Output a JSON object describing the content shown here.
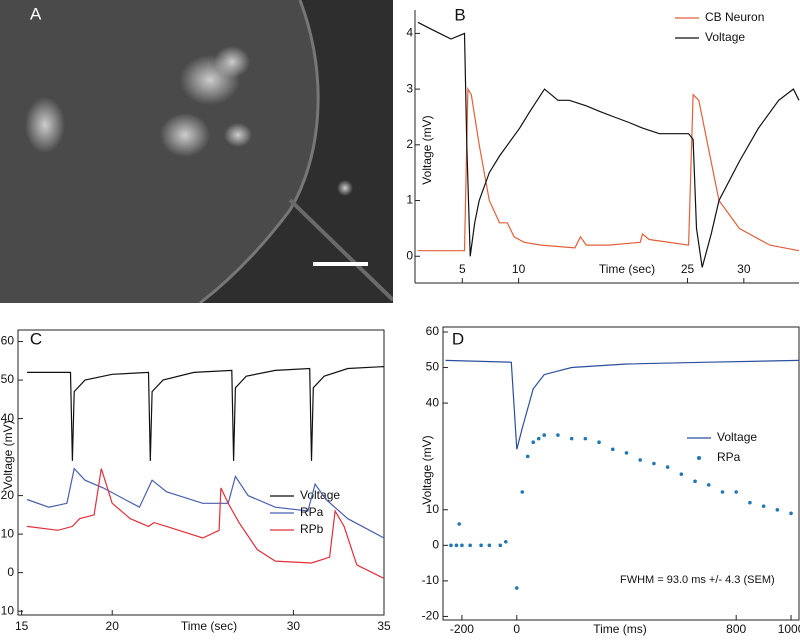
{
  "panel_a": {
    "label": "A"
  },
  "chart_data": [
    {
      "type": "line",
      "label": "B",
      "xlabel": "Time (sec)",
      "ylabel": "Voltage (mV)",
      "xlim": [
        0.8,
        34.9
      ],
      "ylim": [
        -0.48,
        4.42
      ],
      "xticks": [
        5,
        10,
        25,
        30
      ],
      "yticks": [
        0,
        1,
        2,
        3,
        4
      ],
      "frame": false,
      "series": [
        {
          "name": "CB Neuron",
          "color": "#e0603a",
          "style": "line",
          "x": [
            1.06,
            5.2,
            5.5,
            5.8,
            6.5,
            7.4,
            8.3,
            9.0,
            9.6,
            10.5,
            12.0,
            15.0,
            15.5,
            16.0,
            18.0,
            20.8,
            21.0,
            21.6,
            25.1,
            25.5,
            26.0,
            27.0,
            27.8,
            29.6,
            32.3,
            34.9
          ],
          "values": [
            0.1,
            0.1,
            3.0,
            2.9,
            2.0,
            1.0,
            0.6,
            0.6,
            0.35,
            0.25,
            0.2,
            0.15,
            0.35,
            0.2,
            0.2,
            0.25,
            0.4,
            0.3,
            0.2,
            2.9,
            2.8,
            1.8,
            1.0,
            0.5,
            0.2,
            0.1
          ]
        },
        {
          "name": "Voltage",
          "color": "#111111",
          "style": "line",
          "x": [
            1.06,
            2.0,
            3.0,
            4.0,
            5.2,
            5.4,
            5.7,
            6.1,
            6.5,
            7.4,
            8.3,
            10.1,
            11.0,
            12.3,
            13.5,
            14.5,
            16.0,
            17.2,
            18.5,
            19.8,
            21.0,
            22.5,
            23.8,
            25.1,
            25.5,
            25.8,
            26.3,
            27.1,
            27.8,
            29.6,
            31.3,
            33.1,
            34.4,
            34.9
          ],
          "values": [
            4.2,
            4.1,
            4.0,
            3.9,
            4.0,
            2.0,
            0.0,
            0.6,
            1.0,
            1.5,
            1.8,
            2.3,
            2.6,
            3.0,
            2.8,
            2.8,
            2.7,
            2.6,
            2.5,
            2.4,
            2.3,
            2.2,
            2.2,
            2.2,
            2.1,
            0.5,
            -0.2,
            0.4,
            1.0,
            1.7,
            2.3,
            2.8,
            3.0,
            2.8
          ]
        }
      ]
    },
    {
      "type": "line",
      "label": "C",
      "xlabel": "Time (sec)",
      "ylabel": "Voltage (mV)",
      "xlim": [
        14.8,
        35
      ],
      "ylim": [
        -11,
        63
      ],
      "xticks": [
        15,
        20,
        30,
        35
      ],
      "yticks": [
        -10,
        0,
        10,
        20,
        40,
        50,
        60
      ],
      "frame": true,
      "series": [
        {
          "name": "Voltage",
          "color": "#111111",
          "style": "line",
          "x": [
            15.3,
            17.7,
            17.8,
            17.9,
            18.5,
            20.0,
            22.0,
            22.1,
            22.2,
            22.8,
            24.5,
            26.6,
            26.7,
            26.8,
            27.4,
            29.0,
            30.9,
            31.0,
            31.1,
            31.7,
            33.0,
            35.0
          ],
          "values": [
            52,
            52,
            29,
            47,
            50,
            51.5,
            52,
            29,
            47,
            50,
            52,
            52.5,
            29,
            48,
            51,
            52.5,
            53,
            29,
            48,
            51,
            53,
            53.5
          ]
        },
        {
          "name": "RPa",
          "color": "#4a5fb0",
          "style": "line",
          "x": [
            15.3,
            16.5,
            17.5,
            17.9,
            18.5,
            19.5,
            21.5,
            22.2,
            23.0,
            25.0,
            26.4,
            26.8,
            27.5,
            29.0,
            30.8,
            31.2,
            31.8,
            33.0,
            35.0
          ],
          "values": [
            19,
            17,
            18,
            27,
            24,
            22,
            17,
            24,
            21,
            18,
            18,
            25,
            20,
            17,
            16,
            23,
            19,
            14,
            9
          ]
        },
        {
          "name": "RPb",
          "color": "#e0303a",
          "style": "line",
          "x": [
            15.3,
            17.0,
            17.8,
            18.2,
            19.0,
            19.4,
            20.0,
            21.0,
            22.0,
            22.3,
            23.0,
            25.0,
            25.9,
            26.0,
            26.4,
            27.0,
            28.0,
            29.0,
            31.0,
            32.0,
            32.3,
            32.8,
            33.5,
            35.0
          ],
          "values": [
            12,
            11,
            12,
            14,
            15,
            27,
            18,
            14,
            12,
            13,
            12,
            9,
            11,
            22,
            18,
            13,
            6,
            3,
            2.5,
            4,
            16,
            12,
            2,
            -1.5
          ]
        }
      ]
    },
    {
      "type": "line",
      "label": "D",
      "xlabel": "Time (ms)",
      "ylabel": "Voltage (mV)",
      "xlim": [
        -269,
        1029
      ],
      "ylim": [
        -21,
        61.4
      ],
      "xticks": [
        -200,
        0,
        800,
        1000
      ],
      "yticks": [
        -20,
        -10,
        0,
        10,
        40,
        50,
        60
      ],
      "frame": true,
      "annotation": "FWHM = 93.0 ms +/- 4.3 (SEM)",
      "series": [
        {
          "name": "Voltage",
          "color": "#2b4f9e",
          "style": "line",
          "x": [
            -260,
            -20,
            0,
            20,
            60,
            100,
            200,
            400,
            700,
            1029
          ],
          "values": [
            52,
            51.5,
            27,
            33,
            44,
            48,
            50,
            51,
            51.5,
            52
          ]
        },
        {
          "name": "RPa",
          "color": "#1f77b4",
          "style": "dots",
          "x": [
            -240,
            -220,
            -210,
            -200,
            -170,
            -130,
            -100,
            -60,
            -40,
            0,
            20,
            40,
            60,
            80,
            100,
            150,
            200,
            250,
            300,
            350,
            400,
            450,
            500,
            550,
            600,
            650,
            700,
            750,
            800,
            850,
            900,
            950,
            1000
          ],
          "values": [
            0,
            0,
            6,
            0,
            0,
            0,
            0,
            0,
            1,
            -12,
            15,
            25,
            29,
            30,
            31,
            31,
            30,
            30,
            29,
            27,
            26,
            24,
            23,
            22,
            20,
            18,
            17,
            15,
            15,
            12,
            11,
            10,
            9
          ]
        }
      ]
    }
  ]
}
